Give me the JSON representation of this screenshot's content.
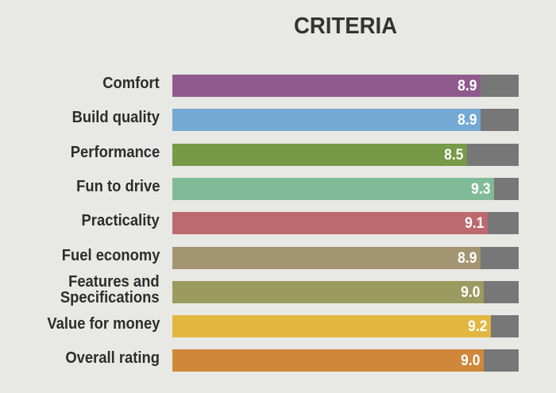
{
  "chart_data": {
    "type": "bar",
    "orientation": "horizontal",
    "title": "CRITERIA",
    "xlabel": "",
    "ylabel": "",
    "xlim": [
      0,
      10
    ],
    "grid": false,
    "categories": [
      "Comfort",
      "Build quality",
      "Performance",
      "Fun to drive",
      "Practicality",
      "Fuel economy",
      "Features and Specifications",
      "Value for money",
      "Overall rating"
    ],
    "values": [
      8.9,
      8.9,
      8.5,
      9.3,
      9.1,
      8.9,
      9.0,
      9.2,
      9.0
    ],
    "value_labels": [
      "8.9",
      "8.9",
      "8.5",
      "9.3",
      "9.1",
      "8.9",
      "9.0",
      "9.2",
      "9.0"
    ],
    "label_lines": [
      [
        "Comfort"
      ],
      [
        "Build quality"
      ],
      [
        "Performance"
      ],
      [
        "Fun to drive"
      ],
      [
        "Practicality"
      ],
      [
        "Fuel economy"
      ],
      [
        "Features and",
        "Specifications"
      ],
      [
        "Value for money"
      ],
      [
        "Overall rating"
      ]
    ],
    "colors": [
      "#8f5a8d",
      "#73a9d2",
      "#769a47",
      "#80bb98",
      "#bd6a6f",
      "#a39571",
      "#9b9b5f",
      "#e2b740",
      "#d0873a"
    ],
    "track_color": "#777777"
  }
}
